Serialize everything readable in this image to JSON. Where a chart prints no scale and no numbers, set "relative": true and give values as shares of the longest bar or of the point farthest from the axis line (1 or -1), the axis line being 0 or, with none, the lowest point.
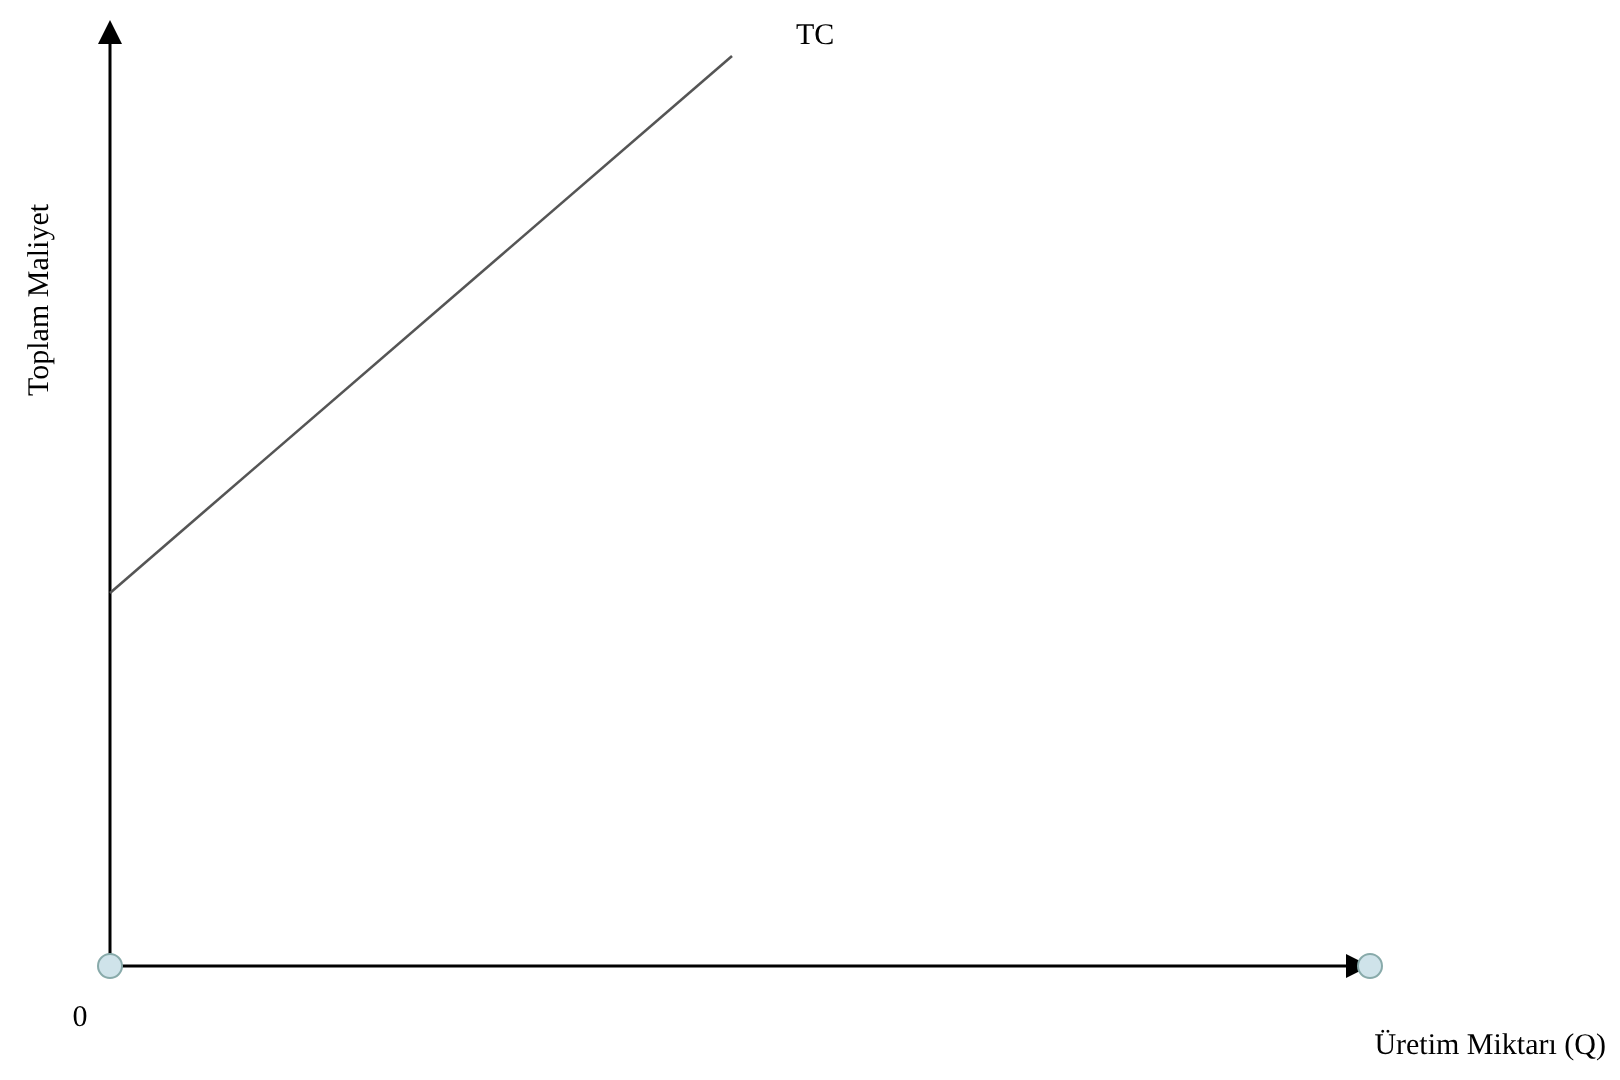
{
  "chart_data": {
    "type": "line",
    "relative": true,
    "xlabel": "Üretim Miktarı (Q)",
    "ylabel": "Toplam Maliyet",
    "categories": [
      null,
      null,
      null
    ],
    "series": [
      {
        "name": "TC",
        "color": "#555555",
        "values": [
          0.41,
          1,
          null
        ]
      }
    ],
    "annotations": [
      "0"
    ]
  }
}
